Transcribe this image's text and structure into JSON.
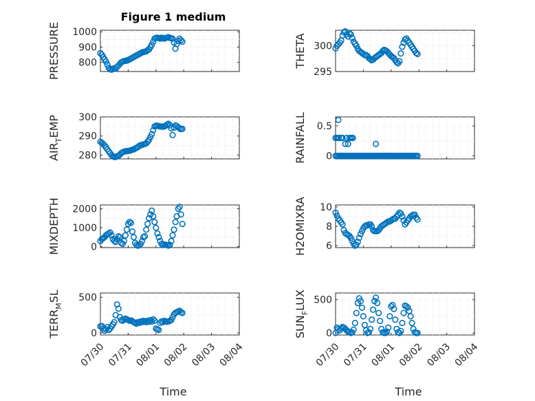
{
  "figure": {
    "title": "Figure 1 medium",
    "xlabel_left": "Time",
    "xlabel_right": "Time",
    "marker_color": "#0072bd"
  },
  "chart_data": [
    {
      "type": "scatter",
      "ylabel": "PRESSURE",
      "ylabel_sub": "",
      "ylim": [
        740,
        1010
      ],
      "yticks": [
        800,
        900,
        1000
      ],
      "xlim": [
        0,
        5
      ],
      "xticks": [],
      "xticklabels": [],
      "grid": true,
      "x": [
        0,
        0.05,
        0.1,
        0.15,
        0.2,
        0.25,
        0.3,
        0.35,
        0.4,
        0.45,
        0.5,
        0.55,
        0.6,
        0.65,
        0.7,
        0.75,
        0.8,
        0.85,
        0.9,
        0.95,
        1,
        1.05,
        1.1,
        1.15,
        1.2,
        1.25,
        1.3,
        1.35,
        1.4,
        1.45,
        1.5,
        1.55,
        1.6,
        1.65,
        1.7,
        1.75,
        1.8,
        1.85,
        1.9,
        1.95,
        2,
        2.05,
        2.1,
        2.15,
        2.2,
        2.25,
        2.3,
        2.35,
        2.4,
        2.45,
        2.5,
        2.55,
        2.6,
        2.65,
        2.7,
        2.75,
        2.8,
        2.85,
        2.9,
        2.95
      ],
      "y": [
        860,
        850,
        835,
        820,
        805,
        785,
        765,
        755,
        752,
        758,
        762,
        758,
        770,
        780,
        790,
        800,
        805,
        808,
        810,
        812,
        815,
        820,
        825,
        830,
        835,
        840,
        845,
        850,
        855,
        860,
        865,
        868,
        870,
        872,
        880,
        885,
        900,
        915,
        935,
        955,
        960,
        962,
        958,
        955,
        962,
        958,
        955,
        960,
        962,
        965,
        960,
        958,
        955,
        930,
        890,
        920,
        940,
        955,
        945,
        935
      ]
    },
    {
      "type": "scatter",
      "ylabel": "THETA",
      "ylabel_sub": "",
      "ylim": [
        295,
        303
      ],
      "yticks": [
        295,
        300
      ],
      "xlim": [
        0,
        5
      ],
      "xticks": [],
      "xticklabels": [],
      "grid": true,
      "x": [
        0,
        0.05,
        0.1,
        0.15,
        0.2,
        0.25,
        0.3,
        0.35,
        0.4,
        0.45,
        0.5,
        0.55,
        0.6,
        0.65,
        0.7,
        0.75,
        0.8,
        0.85,
        0.9,
        0.95,
        1,
        1.05,
        1.1,
        1.15,
        1.2,
        1.25,
        1.3,
        1.35,
        1.4,
        1.45,
        1.5,
        1.55,
        1.6,
        1.65,
        1.7,
        1.75,
        1.8,
        1.85,
        1.9,
        1.95,
        2,
        2.05,
        2.1,
        2.15,
        2.2,
        2.25,
        2.3,
        2.35,
        2.4,
        2.45,
        2.5,
        2.55,
        2.6,
        2.65,
        2.7,
        2.75,
        2.8,
        2.85,
        2.9,
        2.95
      ],
      "y": [
        299.5,
        300,
        300.3,
        300.6,
        301,
        302,
        302.6,
        302.8,
        302.2,
        301.8,
        302.4,
        302.2,
        301.5,
        300.8,
        300.4,
        300,
        299.4,
        299,
        298.8,
        298.6,
        298.4,
        298.2,
        298.2,
        298,
        297.6,
        297.4,
        297.2,
        297.3,
        297.6,
        297.8,
        298,
        298.2,
        298.4,
        298.6,
        299,
        299.2,
        299.1,
        298.9,
        298.6,
        298.3,
        298,
        297.8,
        297.6,
        297.2,
        296.8,
        296.6,
        297,
        298.5,
        299.8,
        300.6,
        301.2,
        301.4,
        301,
        300.6,
        300.2,
        299.8,
        299.4,
        299,
        298.6,
        298.4
      ]
    },
    {
      "type": "scatter",
      "ylabel": "AIR",
      "ylabel_sub": "T",
      "ylabel_tail": "EMP",
      "ylim": [
        278,
        300
      ],
      "yticks": [
        280,
        290,
        300
      ],
      "xlim": [
        0,
        5
      ],
      "xticks": [],
      "xticklabels": [],
      "grid": true,
      "x": [
        0,
        0.05,
        0.1,
        0.15,
        0.2,
        0.25,
        0.3,
        0.35,
        0.4,
        0.45,
        0.5,
        0.55,
        0.6,
        0.65,
        0.7,
        0.75,
        0.8,
        0.85,
        0.9,
        0.95,
        1,
        1.05,
        1.1,
        1.15,
        1.2,
        1.25,
        1.3,
        1.35,
        1.4,
        1.45,
        1.5,
        1.55,
        1.6,
        1.65,
        1.7,
        1.75,
        1.8,
        1.85,
        1.9,
        1.95,
        2,
        2.05,
        2.1,
        2.15,
        2.2,
        2.25,
        2.3,
        2.35,
        2.4,
        2.45,
        2.5,
        2.55,
        2.6,
        2.65,
        2.7,
        2.75,
        2.8,
        2.85,
        2.9,
        2.95
      ],
      "y": [
        287,
        286.4,
        285.8,
        285,
        284,
        283,
        282,
        281,
        280,
        279.4,
        279,
        279,
        279.3,
        279.6,
        280.2,
        281,
        281.5,
        281.8,
        282,
        282.1,
        282.2,
        282.3,
        282.5,
        282.8,
        283,
        283.4,
        283.8,
        284.2,
        284.8,
        285.2,
        285.4,
        285.6,
        285.8,
        286.2,
        287,
        288,
        289.5,
        291,
        293,
        295,
        295.4,
        295.4,
        295.2,
        295,
        295,
        294.8,
        295,
        295.4,
        296,
        296.4,
        295.6,
        294,
        290.5,
        294.4,
        295.6,
        295.2,
        294.6,
        294,
        293.6,
        293.8
      ]
    },
    {
      "type": "scatter",
      "ylabel": "RAINFALL",
      "ylabel_sub": "",
      "ylim": [
        -0.05,
        0.65
      ],
      "yticks": [
        0,
        0.5
      ],
      "xlim": [
        0,
        5
      ],
      "xticks": [],
      "xticklabels": [],
      "grid": true,
      "x": [
        0,
        0.05,
        0.1,
        0.12,
        0.2,
        0.25,
        0.35,
        0.4,
        0.45,
        0.5,
        0.55,
        0.6,
        0.62,
        1.45,
        0,
        0.05,
        0.1,
        0.15,
        0.2,
        0.25,
        0.3,
        0.35,
        0.4,
        0.45,
        0.5,
        0.55,
        0.6,
        0.65,
        0.7,
        0.75,
        0.8,
        0.85,
        0.9,
        0.95,
        1,
        1.05,
        1.1,
        1.15,
        1.2,
        1.25,
        1.3,
        1.35,
        1.4,
        1.45,
        1.5,
        1.55,
        1.6,
        1.65,
        1.7,
        1.75,
        1.8,
        1.85,
        1.9,
        1.95,
        2,
        2.05,
        2.1,
        2.15,
        2.2,
        2.25,
        2.3,
        2.35,
        2.4,
        2.45,
        2.5,
        2.55,
        2.6,
        2.65,
        2.7,
        2.75,
        2.8,
        2.85,
        2.9,
        2.95
      ],
      "y": [
        0.3,
        0.3,
        0.6,
        0.3,
        0.3,
        0.3,
        0.2,
        0.3,
        0.2,
        0.3,
        0.3,
        0.3,
        0.3,
        0.2,
        0,
        0,
        0,
        0,
        0,
        0,
        0,
        0,
        0,
        0,
        0,
        0,
        0,
        0,
        0,
        0,
        0,
        0,
        0,
        0,
        0,
        0,
        0,
        0,
        0,
        0,
        0,
        0,
        0,
        0,
        0,
        0,
        0,
        0,
        0,
        0,
        0,
        0,
        0,
        0,
        0,
        0,
        0,
        0,
        0,
        0,
        0,
        0,
        0,
        0,
        0,
        0,
        0,
        0,
        0,
        0,
        0,
        0,
        0,
        0
      ]
    },
    {
      "type": "scatter",
      "ylabel": "MIXDEPTH",
      "ylabel_sub": "",
      "ylim": [
        -50,
        2200
      ],
      "yticks": [
        0,
        1000,
        2000
      ],
      "xlim": [
        0,
        5
      ],
      "xticks": [],
      "xticklabels": [],
      "grid": true,
      "x": [
        0,
        0.05,
        0.1,
        0.15,
        0.2,
        0.25,
        0.3,
        0.35,
        0.4,
        0.45,
        0.5,
        0.55,
        0.6,
        0.65,
        0.7,
        0.75,
        0.8,
        0.85,
        0.9,
        0.95,
        1,
        1.05,
        1.1,
        1.15,
        1.2,
        1.25,
        1.3,
        1.35,
        1.4,
        1.45,
        1.5,
        1.55,
        1.6,
        1.65,
        1.7,
        1.75,
        1.8,
        1.85,
        1.9,
        1.95,
        2,
        2.05,
        2.1,
        2.15,
        2.2,
        2.25,
        2.3,
        2.35,
        2.4,
        2.45,
        2.5,
        2.55,
        2.6,
        2.65,
        2.7,
        2.75,
        2.8,
        2.85,
        2.9,
        2.95
      ],
      "y": [
        300,
        400,
        450,
        500,
        600,
        650,
        700,
        750,
        600,
        400,
        300,
        250,
        400,
        550,
        500,
        200,
        150,
        300,
        600,
        900,
        1200,
        1300,
        1250,
        800,
        500,
        200,
        100,
        50,
        80,
        150,
        300,
        500,
        550,
        900,
        1200,
        1500,
        1700,
        1900,
        1600,
        1300,
        1000,
        700,
        500,
        300,
        150,
        100,
        120,
        100,
        80,
        60,
        100,
        300,
        600,
        900,
        1300,
        1600,
        2000,
        2100,
        1700,
        1200
      ]
    },
    {
      "type": "scatter",
      "ylabel": "H2OMIXRA",
      "ylabel_sub": "",
      "ylim": [
        5.8,
        10.2
      ],
      "yticks": [
        6,
        8,
        10
      ],
      "xlim": [
        0,
        5
      ],
      "xticks": [],
      "xticklabels": [],
      "grid": true,
      "x": [
        0,
        0.05,
        0.1,
        0.15,
        0.2,
        0.25,
        0.3,
        0.35,
        0.4,
        0.45,
        0.5,
        0.55,
        0.6,
        0.65,
        0.7,
        0.75,
        0.8,
        0.85,
        0.9,
        0.95,
        1,
        1.05,
        1.1,
        1.15,
        1.2,
        1.25,
        1.3,
        1.35,
        1.4,
        1.45,
        1.5,
        1.55,
        1.6,
        1.65,
        1.7,
        1.75,
        1.8,
        1.85,
        1.9,
        1.95,
        2,
        2.05,
        2.1,
        2.15,
        2.2,
        2.25,
        2.3,
        2.35,
        2.4,
        2.45,
        2.5,
        2.55,
        2.6,
        2.65,
        2.7,
        2.75,
        2.8,
        2.85,
        2.9,
        2.95
      ],
      "y": [
        9.4,
        9.1,
        8.8,
        8.6,
        8.4,
        8.2,
        7.6,
        7.3,
        7.2,
        7.1,
        7,
        6.8,
        6.5,
        6.2,
        6,
        6.1,
        6.4,
        6.8,
        7.2,
        7.5,
        7.8,
        8,
        8.1,
        8.1,
        8.2,
        8.2,
        8,
        7.6,
        7.5,
        7.5,
        7.5,
        7.6,
        7.8,
        8,
        8.1,
        8.2,
        8.3,
        8.4,
        8.5,
        8.5,
        8.6,
        8.7,
        8.8,
        8.8,
        9,
        9.2,
        9.4,
        9.3,
        9,
        8.6,
        8.2,
        8.4,
        8.6,
        8.8,
        9,
        9.1,
        9.2,
        9.2,
        8.9,
        8.7
      ]
    },
    {
      "type": "scatter",
      "ylabel": "TERR",
      "ylabel_sub": "M",
      "ylabel_tail": "SL",
      "ylim": [
        -30,
        560
      ],
      "yticks": [
        0,
        500
      ],
      "xlim": [
        0,
        5
      ],
      "xticks": [
        0,
        1,
        2,
        3,
        4,
        5
      ],
      "xticklabels": [
        "07/30",
        "07/31",
        "08/01",
        "08/02",
        "08/03",
        "08/04"
      ],
      "grid": true,
      "x": [
        0,
        0.05,
        0.1,
        0.15,
        0.2,
        0.25,
        0.3,
        0.35,
        0.4,
        0.45,
        0.5,
        0.55,
        0.6,
        0.65,
        0.7,
        0.75,
        0.8,
        0.85,
        0.9,
        0.95,
        1,
        1.05,
        1.1,
        1.15,
        1.2,
        1.25,
        1.3,
        1.35,
        1.4,
        1.45,
        1.5,
        1.55,
        1.6,
        1.65,
        1.7,
        1.75,
        1.8,
        1.85,
        1.9,
        1.95,
        2,
        2.05,
        2.1,
        2.15,
        2.2,
        2.25,
        2.3,
        2.35,
        2.4,
        2.45,
        2.5,
        2.55,
        2.6,
        2.65,
        2.7,
        2.75,
        2.8,
        2.85,
        2.9,
        2.95
      ],
      "y": [
        90,
        95,
        60,
        30,
        50,
        80,
        40,
        60,
        90,
        120,
        150,
        250,
        400,
        340,
        220,
        180,
        170,
        190,
        200,
        190,
        180,
        170,
        175,
        165,
        150,
        140,
        130,
        150,
        140,
        160,
        150,
        170,
        160,
        150,
        170,
        155,
        180,
        160,
        190,
        170,
        60,
        50,
        40,
        140,
        160,
        150,
        170,
        160,
        155,
        160,
        170,
        180,
        220,
        260,
        280,
        290,
        300,
        310,
        290,
        280
      ]
    },
    {
      "type": "scatter",
      "ylabel": "SUN",
      "ylabel_sub": "F",
      "ylabel_tail": "LUX",
      "ylim": [
        -30,
        600
      ],
      "yticks": [
        0,
        500
      ],
      "xlim": [
        0,
        5
      ],
      "xticks": [
        0,
        1,
        2,
        3,
        4,
        5
      ],
      "xticklabels": [
        "07/30",
        "07/31",
        "08/01",
        "08/02",
        "08/03",
        "08/04"
      ],
      "grid": true,
      "x": [
        0,
        0.05,
        0.1,
        0.15,
        0.2,
        0.25,
        0.3,
        0.35,
        0.4,
        0.45,
        0.5,
        0.55,
        0.6,
        0.65,
        0.7,
        0.75,
        0.8,
        0.85,
        0.9,
        0.95,
        1,
        1.05,
        1.1,
        1.15,
        1.2,
        1.25,
        1.3,
        1.35,
        1.4,
        1.45,
        1.5,
        1.55,
        1.6,
        1.65,
        1.7,
        1.75,
        1.8,
        1.85,
        1.9,
        1.95,
        2,
        2.05,
        2.1,
        2.15,
        2.2,
        2.25,
        2.3,
        2.35,
        2.4,
        2.45,
        2.5,
        2.55,
        2.6,
        2.65,
        2.7,
        2.75,
        2.8,
        2.85,
        2.9,
        2.95
      ],
      "y": [
        0,
        80,
        60,
        40,
        70,
        90,
        80,
        60,
        40,
        20,
        10,
        0,
        10,
        50,
        150,
        300,
        450,
        520,
        480,
        380,
        250,
        120,
        40,
        0,
        10,
        60,
        200,
        350,
        480,
        530,
        450,
        300,
        180,
        60,
        10,
        0,
        0,
        20,
        80,
        250,
        400,
        420,
        360,
        200,
        60,
        10,
        0,
        30,
        150,
        300,
        410,
        400,
        380,
        330,
        250,
        150,
        60,
        10,
        0,
        0
      ]
    }
  ]
}
